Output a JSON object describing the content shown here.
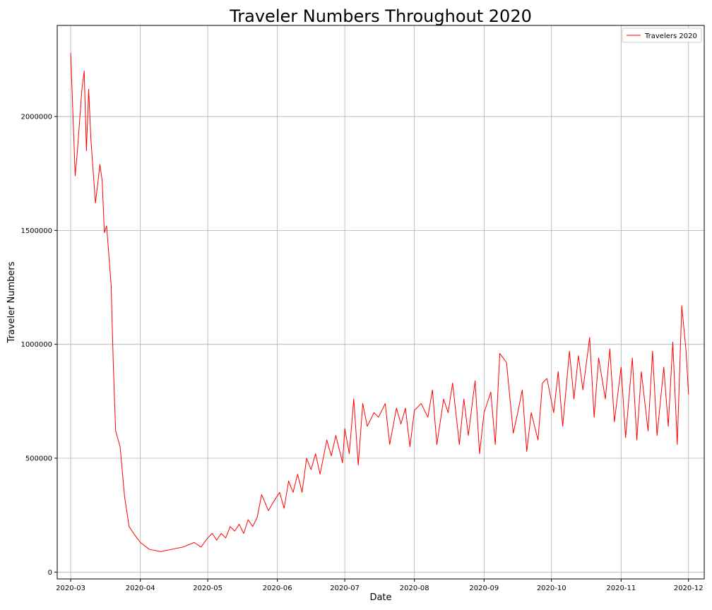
{
  "chart_data": {
    "type": "line",
    "title": "Traveler Numbers Throughout 2020",
    "xlabel": "Date",
    "ylabel": "Traveler Numbers",
    "xlim": [
      "2020-02-24",
      "2020-12-08"
    ],
    "ylim": [
      -30000,
      2400000
    ],
    "grid": true,
    "legend_placement": "top-right",
    "x_ticks": [
      "2020-03",
      "2020-04",
      "2020-05",
      "2020-06",
      "2020-07",
      "2020-08",
      "2020-09",
      "2020-10",
      "2020-11",
      "2020-12"
    ],
    "y_ticks": [
      0,
      500000,
      1000000,
      1500000,
      2000000
    ],
    "series": [
      {
        "name": "Travelers 2020",
        "color": "#ff0000",
        "x": [
          "2020-03-01",
          "2020-03-03",
          "2020-03-04",
          "2020-03-06",
          "2020-03-07",
          "2020-03-08",
          "2020-03-09",
          "2020-03-10",
          "2020-03-12",
          "2020-03-13",
          "2020-03-14",
          "2020-03-15",
          "2020-03-16",
          "2020-03-17",
          "2020-03-19",
          "2020-03-20",
          "2020-03-21",
          "2020-03-23",
          "2020-03-25",
          "2020-03-27",
          "2020-03-29",
          "2020-04-01",
          "2020-04-05",
          "2020-04-10",
          "2020-04-15",
          "2020-04-20",
          "2020-04-25",
          "2020-04-28",
          "2020-05-01",
          "2020-05-03",
          "2020-05-05",
          "2020-05-07",
          "2020-05-09",
          "2020-05-11",
          "2020-05-13",
          "2020-05-15",
          "2020-05-17",
          "2020-05-19",
          "2020-05-21",
          "2020-05-23",
          "2020-05-25",
          "2020-05-28",
          "2020-05-31",
          "2020-06-02",
          "2020-06-04",
          "2020-06-06",
          "2020-06-08",
          "2020-06-10",
          "2020-06-12",
          "2020-06-14",
          "2020-06-16",
          "2020-06-18",
          "2020-06-20",
          "2020-06-23",
          "2020-06-25",
          "2020-06-27",
          "2020-06-30",
          "2020-07-01",
          "2020-07-03",
          "2020-07-05",
          "2020-07-07",
          "2020-07-09",
          "2020-07-11",
          "2020-07-14",
          "2020-07-16",
          "2020-07-19",
          "2020-07-21",
          "2020-07-24",
          "2020-07-26",
          "2020-07-28",
          "2020-07-30",
          "2020-08-01",
          "2020-08-04",
          "2020-08-07",
          "2020-08-09",
          "2020-08-11",
          "2020-08-14",
          "2020-08-16",
          "2020-08-18",
          "2020-08-21",
          "2020-08-23",
          "2020-08-25",
          "2020-08-28",
          "2020-08-30",
          "2020-09-01",
          "2020-09-04",
          "2020-09-06",
          "2020-09-08",
          "2020-09-11",
          "2020-09-14",
          "2020-09-16",
          "2020-09-18",
          "2020-09-20",
          "2020-09-22",
          "2020-09-25",
          "2020-09-27",
          "2020-09-29",
          "2020-10-02",
          "2020-10-04",
          "2020-10-06",
          "2020-10-09",
          "2020-10-11",
          "2020-10-13",
          "2020-10-15",
          "2020-10-18",
          "2020-10-20",
          "2020-10-22",
          "2020-10-25",
          "2020-10-27",
          "2020-10-29",
          "2020-11-01",
          "2020-11-03",
          "2020-11-06",
          "2020-11-08",
          "2020-11-10",
          "2020-11-13",
          "2020-11-15",
          "2020-11-17",
          "2020-11-20",
          "2020-11-22",
          "2020-11-24",
          "2020-11-26",
          "2020-11-28",
          "2020-11-30",
          "2020-12-01"
        ],
        "y": [
          2280000,
          1740000,
          1850000,
          2120000,
          2200000,
          1850000,
          2120000,
          1900000,
          1620000,
          1700000,
          1790000,
          1720000,
          1490000,
          1520000,
          1260000,
          900000,
          620000,
          550000,
          330000,
          200000,
          170000,
          130000,
          100000,
          90000,
          100000,
          110000,
          130000,
          110000,
          150000,
          170000,
          140000,
          170000,
          150000,
          200000,
          180000,
          210000,
          170000,
          230000,
          200000,
          240000,
          340000,
          270000,
          320000,
          350000,
          280000,
          400000,
          350000,
          430000,
          350000,
          500000,
          450000,
          520000,
          430000,
          580000,
          510000,
          600000,
          480000,
          630000,
          520000,
          760000,
          470000,
          740000,
          640000,
          700000,
          680000,
          740000,
          560000,
          720000,
          650000,
          720000,
          550000,
          710000,
          740000,
          680000,
          800000,
          560000,
          760000,
          700000,
          830000,
          560000,
          760000,
          600000,
          840000,
          520000,
          700000,
          790000,
          560000,
          960000,
          920000,
          610000,
          700000,
          800000,
          530000,
          700000,
          580000,
          830000,
          850000,
          700000,
          880000,
          640000,
          970000,
          760000,
          950000,
          800000,
          1030000,
          680000,
          940000,
          760000,
          980000,
          660000,
          900000,
          590000,
          940000,
          580000,
          880000,
          620000,
          970000,
          600000,
          900000,
          640000,
          1010000,
          560000,
          1170000,
          960000,
          780000
        ]
      }
    ]
  }
}
